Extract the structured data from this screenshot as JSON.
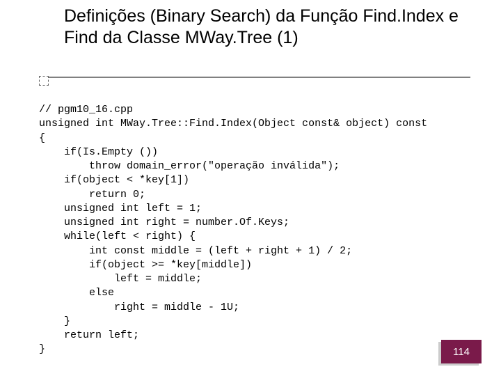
{
  "title": "Definições (Binary Search) da Função Find.Index e Find da Classe MWay.Tree (1)",
  "code": {
    "l01": "// pgm10_16.cpp",
    "l02": "unsigned int MWay.Tree::Find.Index(Object const& object) const",
    "l03": "{",
    "l04": "    if(Is.Empty ())",
    "l05": "        throw domain_error(\"operação inválida\");",
    "l06": "    if(object < *key[1])",
    "l07": "        return 0;",
    "l08": "    unsigned int left = 1;",
    "l09": "    unsigned int right = number.Of.Keys;",
    "l10": "    while(left < right) {",
    "l11": "        int const middle = (left + right + 1) / 2;",
    "l12": "        if(object >= *key[middle])",
    "l13": "            left = middle;",
    "l14": "        else",
    "l15": "            right = middle - 1U;",
    "l16": "    }",
    "l17": "    return left;",
    "l18": "}"
  },
  "page_number": "114",
  "colors": {
    "background": "#ffffff",
    "text": "#000000",
    "underline": "#808080",
    "badge_bg": "#7a1a4a",
    "badge_text": "#ffffff",
    "badge_shadow": "#cccccc"
  }
}
